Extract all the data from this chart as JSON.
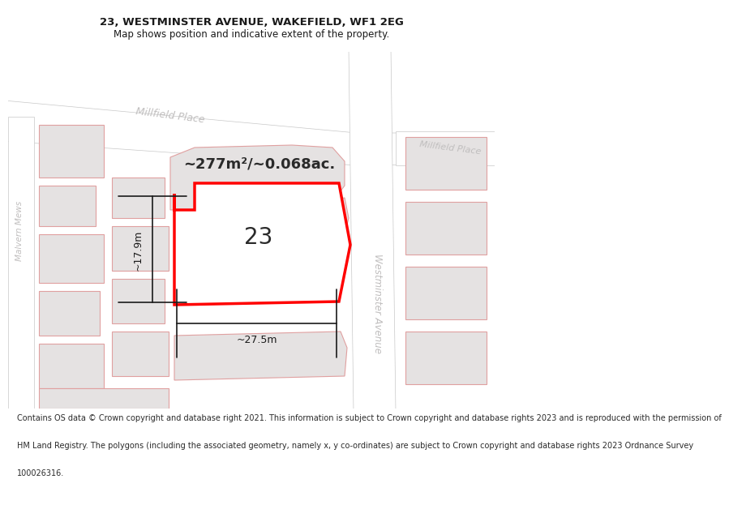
{
  "title": "23, WESTMINSTER AVENUE, WAKEFIELD, WF1 2EG",
  "subtitle": "Map shows position and indicative extent of the property.",
  "footer_lines": [
    "Contains OS data © Crown copyright and database right 2021. This information is subject to Crown copyright and database rights 2023 and is reproduced with the permission of",
    "HM Land Registry. The polygons (including the associated geometry, namely x, y co-ordinates) are subject to Crown copyright and database rights 2023 Ordnance Survey",
    "100026316."
  ],
  "map_bg": "#f2f0f0",
  "white": "#ffffff",
  "road_fill": "#ffffff",
  "road_edge": "#c8c8c8",
  "bld_fill": "#e5e2e2",
  "bld_edge": "#e0a0a0",
  "highlight": "#ff0000",
  "street_color": "#c0bebe",
  "dim_color": "#1a1a1a",
  "text_color": "#2a2a2a",
  "title_color": "#1a1a1a",
  "area_label": "~277m²/~0.068ac.",
  "property_number": "23",
  "dim_w": "~27.5m",
  "dim_h": "~17.9m",
  "title_fontsize": 9.5,
  "subtitle_fontsize": 8.5,
  "area_fontsize": 13,
  "num_fontsize": 20,
  "dim_fontsize": 9,
  "street_fontsize": 9,
  "footer_fontsize": 7.0
}
